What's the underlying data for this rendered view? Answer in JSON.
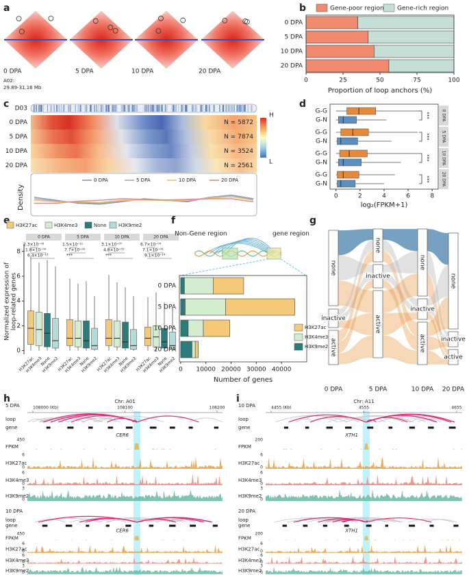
{
  "figure": {
    "panel_labels": [
      "a",
      "b",
      "c",
      "d",
      "e",
      "f",
      "g",
      "h",
      "i"
    ]
  },
  "panels": {
    "a": {
      "stages": [
        "0 DPA",
        "5 DPA",
        "10 DPA",
        "20 DPA"
      ],
      "region": [
        "A02:",
        "29.89-31.16 Mb"
      ]
    },
    "c": {
      "chromosome": "D03",
      "rows": [
        {
          "stage": "0 DPA",
          "n": "N = 5872"
        },
        {
          "stage": "5 DPA",
          "n": "N = 7874"
        },
        {
          "stage": "10 DPA",
          "n": "N = 3524"
        },
        {
          "stage": "20 DPA",
          "n": "N = 2561"
        }
      ],
      "scale": [
        "H",
        "L"
      ],
      "density": {
        "ylabel": "Density",
        "ylim": [
          0,
          1
        ],
        "series": [
          {
            "name": "0 DPA",
            "color": "#8a8fc0",
            "values": [
              0.55,
              0.45,
              0.35,
              0.32,
              0.4,
              0.5,
              0.45,
              0.4,
              0.55,
              0.62,
              0.5
            ]
          },
          {
            "name": "5 DPA",
            "color": "#a8a8a8",
            "values": [
              0.5,
              0.42,
              0.38,
              0.35,
              0.42,
              0.48,
              0.44,
              0.42,
              0.55,
              0.6,
              0.48
            ]
          },
          {
            "name": "10 DPA",
            "color": "#e8c070",
            "values": [
              0.45,
              0.4,
              0.4,
              0.38,
              0.45,
              0.46,
              0.44,
              0.45,
              0.52,
              0.56,
              0.45
            ]
          },
          {
            "name": "20 DPA",
            "color": "#d98b8b",
            "values": [
              0.35,
              0.35,
              0.42,
              0.45,
              0.5,
              0.48,
              0.46,
              0.48,
              0.5,
              0.5,
              0.4
            ]
          }
        ]
      }
    },
    "f": {
      "schematic": [
        "Non-Gene region",
        "gene region"
      ]
    },
    "g": {
      "columns": [
        "0 DPA",
        "5 DPA",
        "10 DPA",
        "20 DPA"
      ],
      "nodes": [
        [
          "none",
          "inactive",
          "active"
        ],
        [
          "none",
          "inactive",
          "active"
        ],
        [
          "none",
          "inactive",
          "active"
        ],
        [
          "none",
          "inactive",
          "active"
        ]
      ]
    },
    "h": {
      "chromosome": "Chr: A01",
      "coordinates": [
        "108000 (Kb)",
        "108100",
        "108200"
      ],
      "blocks": [
        {
          "stage": "5 DPA",
          "gene_name": "CER6"
        },
        {
          "stage": "10 DPA",
          "gene_name": "CER6"
        }
      ],
      "rows": [
        "loop",
        "gene"
      ],
      "tracks": [
        {
          "name": "FPKM",
          "max": 450
        },
        {
          "name": "H3K27ac",
          "max": 6,
          "min": 0
        },
        {
          "name": "H3K4me3",
          "max": 6,
          "min": 0
        },
        {
          "name": "H3K9me2",
          "max": 3,
          "min": 0
        }
      ]
    },
    "i": {
      "chromosome": "Chr: A11",
      "coordinates": [
        "4455 (Kb)",
        "4555",
        "4655"
      ],
      "blocks": [
        {
          "stage": "10 DPA",
          "gene_name": "XTH1"
        },
        {
          "stage": "20 DPA",
          "gene_name": "XTH1"
        }
      ],
      "rows": [
        "loop",
        "gene"
      ],
      "tracks": [
        {
          "name": "FPKM",
          "max": 200
        },
        {
          "name": "H3K27ac",
          "max": 6,
          "min": 0
        },
        {
          "name": "H3K4me3",
          "max": 6,
          "min": 0
        },
        {
          "name": "H3K9me2",
          "max": 3,
          "min": 0
        }
      ]
    }
  },
  "chart_data": [
    {
      "type": "bar",
      "orientation": "horizontal",
      "stacked": true,
      "legend": "top",
      "categories": [
        "0 DPA",
        "5 DPA",
        "10 DPA",
        "20 DPA"
      ],
      "series": [
        {
          "name": "Gene-poor region",
          "color": "#ef8a6f",
          "values": [
            35,
            42,
            46,
            56
          ]
        },
        {
          "name": "Gene-rich region",
          "color": "#c5ded6",
          "values": [
            65,
            58,
            54,
            44
          ]
        }
      ],
      "xlim": [
        0,
        100
      ],
      "xticks": [
        0,
        25,
        50,
        75,
        100
      ],
      "xlabel": "Proportion of loop anchors (%)"
    },
    {
      "type": "box",
      "orientation": "horizontal",
      "categories": [
        "G-G",
        "G-N"
      ],
      "colors": [
        "#e8893a",
        "#5b8fc0"
      ],
      "groups": [
        {
          "facet": "0 DPA",
          "significance": "***",
          "boxes": [
            {
              "min": 0,
              "q1": 0.9,
              "median": 1.9,
              "q3": 3.3,
              "max": 7.0
            },
            {
              "min": 0,
              "q1": 0.2,
              "median": 0.6,
              "q3": 1.7,
              "max": 4.2
            }
          ]
        },
        {
          "facet": "5 DPA",
          "significance": "***",
          "boxes": [
            {
              "min": 0,
              "q1": 0.4,
              "median": 1.4,
              "q3": 2.7,
              "max": 6.8
            },
            {
              "min": 0,
              "q1": 0.1,
              "median": 0.4,
              "q3": 1.8,
              "max": 4.6
            }
          ]
        },
        {
          "facet": "10 DPA",
          "significance": "***",
          "boxes": [
            {
              "min": 0,
              "q1": 0.3,
              "median": 1.1,
              "q3": 2.6,
              "max": 6.9
            },
            {
              "min": 0,
              "q1": 0.2,
              "median": 0.6,
              "q3": 2.1,
              "max": 5.4
            }
          ]
        },
        {
          "facet": "20 DPA",
          "significance": "***",
          "boxes": [
            {
              "min": 0,
              "q1": 0.1,
              "median": 0.6,
              "q3": 1.9,
              "max": 4.9
            },
            {
              "min": 0,
              "q1": 0.1,
              "median": 0.4,
              "q3": 1.6,
              "max": 4.0
            }
          ]
        }
      ],
      "xlim": [
        -0.5,
        8.5
      ],
      "xticks": [
        0,
        2,
        4,
        6,
        8
      ],
      "xlabel": "log₂(FPKM+1)"
    },
    {
      "type": "box",
      "orientation": "vertical",
      "legend": "top",
      "categories": [
        "H3K27ac",
        "H3K4me3",
        "None",
        "H3K9me2"
      ],
      "colors": [
        "#f5c97a",
        "#d4ecd0",
        "#2e7b7b",
        "#b5dbd8"
      ],
      "groups": [
        {
          "facet": "0 DPA",
          "annotations": [
            "2.3×10⁻⁰⁶",
            "1.8×10⁻⁰⁹",
            "6.4×10⁻¹³"
          ],
          "boxes": [
            {
              "min": 0,
              "q1": 0.5,
              "median": 1.8,
              "q3": 3.2,
              "max": 7.6
            },
            {
              "min": 0,
              "q1": 0.4,
              "median": 1.7,
              "q3": 3.1,
              "max": 7.1
            },
            {
              "min": 0,
              "q1": 0.3,
              "median": 1.4,
              "q3": 3.0,
              "max": 7.3
            },
            {
              "min": 0,
              "q1": 0.2,
              "median": 0.8,
              "q3": 2.6,
              "max": 6.8
            }
          ]
        },
        {
          "facet": "5 DPA",
          "annotations": [
            "1.5×10⁻¹¹",
            "7.7×10⁻⁰²",
            "***"
          ],
          "boxes": [
            {
              "min": 0,
              "q1": 0.4,
              "median": 1.0,
              "q3": 2.5,
              "max": 5.8
            },
            {
              "min": 0,
              "q1": 0.3,
              "median": 1.0,
              "q3": 2.4,
              "max": 5.4
            },
            {
              "min": 0,
              "q1": 0.2,
              "median": 0.8,
              "q3": 2.4,
              "max": 5.6
            },
            {
              "min": 0,
              "q1": 0.1,
              "median": 0.4,
              "q3": 1.8,
              "max": 4.4
            }
          ]
        },
        {
          "facet": "10 DPA",
          "annotations": [
            "3.1×10⁻⁰⁷",
            "4.8×10⁻⁰⁵",
            "***"
          ],
          "boxes": [
            {
              "min": 0,
              "q1": 0.4,
              "median": 1.0,
              "q3": 2.5,
              "max": 6.1
            },
            {
              "min": 0,
              "q1": 0.3,
              "median": 1.0,
              "q3": 2.4,
              "max": 5.5
            },
            {
              "min": 0,
              "q1": 0.2,
              "median": 0.7,
              "q3": 2.3,
              "max": 5.1
            },
            {
              "min": 0,
              "q1": 0.1,
              "median": 0.4,
              "q3": 1.7,
              "max": 4.4
            }
          ]
        },
        {
          "facet": "20 DPA",
          "annotations": [
            "6.7×10⁻⁰³",
            "7.1×10⁻⁰³",
            "9.1×10⁻¹⁴"
          ],
          "boxes": [
            {
              "min": 0,
              "q1": 0.4,
              "median": 1.0,
              "q3": 1.9,
              "max": 4.3
            },
            {
              "min": 0,
              "q1": 0.3,
              "median": 1.1,
              "q3": 2.0,
              "max": 4.7
            },
            {
              "min": 0,
              "q1": 0.2,
              "median": 0.7,
              "q3": 1.8,
              "max": 3.9
            },
            {
              "min": 0,
              "q1": 0.1,
              "median": 0.4,
              "q3": 1.5,
              "max": 3.4
            }
          ]
        }
      ],
      "ylim": [
        -0.3,
        8.6
      ],
      "yticks": [
        0,
        2,
        4,
        6,
        8
      ],
      "ylabel": [
        "Normalized expression of",
        "loop-related genes"
      ]
    },
    {
      "type": "bar",
      "orientation": "horizontal",
      "stacked": true,
      "legend": "right",
      "categories": [
        "0 DPA",
        "5 DPA",
        "10 DPA",
        "20 DPA"
      ],
      "series": [
        {
          "name": "H3K9me2",
          "color": "#2e7b7b",
          "values": [
            1500,
            1800,
            3000,
            4500
          ]
        },
        {
          "name": "H3K4me3",
          "color": "#d4ecd0",
          "values": [
            11500,
            16000,
            6000,
            1300
          ]
        },
        {
          "name": "H3K27ac",
          "color": "#f5c97a",
          "values": [
            12000,
            27500,
            10500,
            1200
          ]
        }
      ],
      "xlim": [
        -500,
        50000
      ],
      "xticks": [
        0,
        10000,
        20000,
        30000,
        40000
      ],
      "xlabel": "Number of genes"
    }
  ]
}
